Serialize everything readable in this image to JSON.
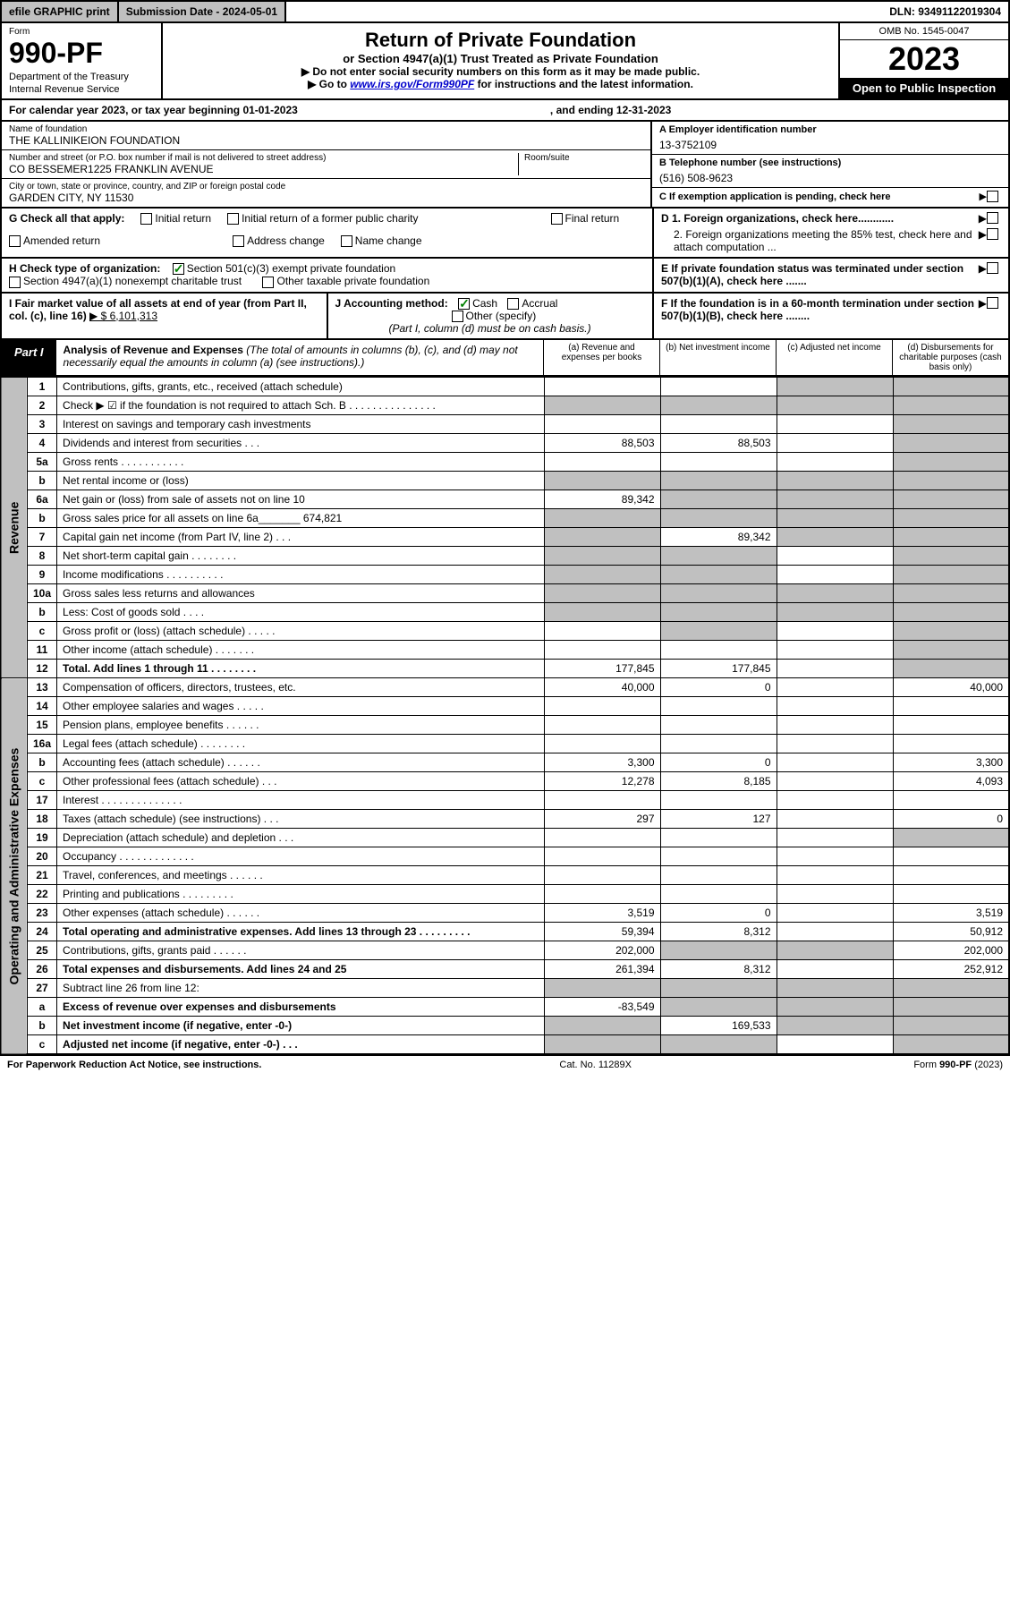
{
  "topBar": {
    "efile": "efile GRAPHIC print",
    "subDate": "Submission Date - 2024-05-01",
    "dln": "DLN: 93491122019304"
  },
  "header": {
    "formLabel": "Form",
    "formNum": "990-PF",
    "dept": "Department of the Treasury",
    "irs": "Internal Revenue Service",
    "title": "Return of Private Foundation",
    "subtitle": "or Section 4947(a)(1) Trust Treated as Private Foundation",
    "note1": "▶ Do not enter social security numbers on this form as it may be made public.",
    "note2prefix": "▶ Go to ",
    "note2link": "www.irs.gov/Form990PF",
    "note2suffix": " for instructions and the latest information.",
    "omb": "OMB No. 1545-0047",
    "year": "2023",
    "openPub": "Open to Public Inspection"
  },
  "calYear": {
    "left": "For calendar year 2023, or tax year beginning 01-01-2023",
    "right": ", and ending 12-31-2023"
  },
  "entity": {
    "nameLabel": "Name of foundation",
    "name": "THE KALLINIKEION FOUNDATION",
    "addrLabel": "Number and street (or P.O. box number if mail is not delivered to street address)",
    "addr": "CO BESSEMER1225 FRANKLIN AVENUE",
    "roomLabel": "Room/suite",
    "cityLabel": "City or town, state or province, country, and ZIP or foreign postal code",
    "city": "GARDEN CITY, NY  11530",
    "einLabel": "A Employer identification number",
    "ein": "13-3752109",
    "telLabel": "B Telephone number (see instructions)",
    "tel": "(516) 508-9623",
    "cLabel": "C If exemption application is pending, check here"
  },
  "sectionG": {
    "label": "G Check all that apply:",
    "opts": [
      "Initial return",
      "Initial return of a former public charity",
      "Final return",
      "Amended return",
      "Address change",
      "Name change"
    ]
  },
  "sectionD": {
    "d1": "D 1. Foreign organizations, check here............",
    "d2": "2. Foreign organizations meeting the 85% test, check here and attach computation ..."
  },
  "sectionH": {
    "label": "H Check type of organization:",
    "opt1": "Section 501(c)(3) exempt private foundation",
    "opt2": "Section 4947(a)(1) nonexempt charitable trust",
    "opt3": "Other taxable private foundation"
  },
  "sectionE": "E  If private foundation status was terminated under section 507(b)(1)(A), check here .......",
  "sectionI": {
    "label": "I Fair market value of all assets at end of year (from Part II, col. (c), line 16)",
    "val": "▶ $  6,101,313"
  },
  "sectionJ": {
    "label": "J Accounting method:",
    "cash": "Cash",
    "accrual": "Accrual",
    "other": "Other (specify)",
    "note": "(Part I, column (d) must be on cash basis.)"
  },
  "sectionF": "F  If the foundation is in a 60-month termination under section 507(b)(1)(B), check here ........",
  "part1": {
    "tab": "Part I",
    "title": "Analysis of Revenue and Expenses",
    "titleNote": " (The total of amounts in columns (b), (c), and (d) may not necessarily equal the amounts in column (a) (see instructions).)",
    "colA": "(a)   Revenue and expenses per books",
    "colB": "(b)   Net investment income",
    "colC": "(c)   Adjusted net income",
    "colD": "(d)   Disbursements for charitable purposes (cash basis only)"
  },
  "sideLabels": {
    "rev": "Revenue",
    "exp": "Operating and Administrative Expenses"
  },
  "rows": [
    {
      "n": "1",
      "d": "Contributions, gifts, grants, etc., received (attach schedule)",
      "a": "",
      "b": "",
      "c": "shade",
      "dd": "shade"
    },
    {
      "n": "2",
      "d": "Check ▶ ☑ if the foundation is not required to attach Sch. B   .   .   .   .   .   .   .   .   .   .   .   .   .   .   .",
      "a": "shade",
      "b": "shade",
      "c": "shade",
      "dd": "shade",
      "bold": false
    },
    {
      "n": "3",
      "d": "Interest on savings and temporary cash investments",
      "a": "",
      "b": "",
      "c": "",
      "dd": "shade"
    },
    {
      "n": "4",
      "d": "Dividends and interest from securities    .    .    .",
      "a": "88,503",
      "b": "88,503",
      "c": "",
      "dd": "shade"
    },
    {
      "n": "5a",
      "d": "Gross rents     .    .    .    .    .    .    .    .    .    .    .",
      "a": "",
      "b": "",
      "c": "",
      "dd": "shade"
    },
    {
      "n": "b",
      "d": "Net rental income or (loss)  ",
      "a": "shade",
      "b": "shade",
      "c": "shade",
      "dd": "shade"
    },
    {
      "n": "6a",
      "d": "Net gain or (loss) from sale of assets not on line 10",
      "a": "89,342",
      "b": "shade",
      "c": "shade",
      "dd": "shade"
    },
    {
      "n": "b",
      "d": "Gross sales price for all assets on line 6a_______ 674,821",
      "a": "shade",
      "b": "shade",
      "c": "shade",
      "dd": "shade"
    },
    {
      "n": "7",
      "d": "Capital gain net income (from Part IV, line 2)   .   .   .",
      "a": "shade",
      "b": "89,342",
      "c": "shade",
      "dd": "shade"
    },
    {
      "n": "8",
      "d": "Net short-term capital gain   .   .   .   .   .   .   .   .",
      "a": "shade",
      "b": "shade",
      "c": "",
      "dd": "shade"
    },
    {
      "n": "9",
      "d": "Income modifications  .   .   .   .   .   .   .   .   .   .",
      "a": "shade",
      "b": "shade",
      "c": "",
      "dd": "shade"
    },
    {
      "n": "10a",
      "d": "Gross sales less returns and allowances",
      "a": "shade",
      "b": "shade",
      "c": "shade",
      "dd": "shade"
    },
    {
      "n": "b",
      "d": "Less: Cost of goods sold     .    .    .    .",
      "a": "shade",
      "b": "shade",
      "c": "shade",
      "dd": "shade"
    },
    {
      "n": "c",
      "d": "Gross profit or (loss) (attach schedule)    .   .   .   .   .",
      "a": "",
      "b": "shade",
      "c": "",
      "dd": "shade"
    },
    {
      "n": "11",
      "d": "Other income (attach schedule)    .   .   .   .   .   .   .",
      "a": "",
      "b": "",
      "c": "",
      "dd": "shade"
    },
    {
      "n": "12",
      "d": "Total. Add lines 1 through 11   .   .   .   .   .   .   .   .",
      "a": "177,845",
      "b": "177,845",
      "c": "",
      "dd": "shade",
      "bold": true
    },
    {
      "n": "13",
      "d": "Compensation of officers, directors, trustees, etc.",
      "a": "40,000",
      "b": "0",
      "c": "",
      "dd": "40,000",
      "sect": "exp"
    },
    {
      "n": "14",
      "d": "Other employee salaries and wages    .   .   .   .   .",
      "a": "",
      "b": "",
      "c": "",
      "dd": ""
    },
    {
      "n": "15",
      "d": "Pension plans, employee benefits   .   .   .   .   .   .",
      "a": "",
      "b": "",
      "c": "",
      "dd": ""
    },
    {
      "n": "16a",
      "d": "Legal fees (attach schedule)  .   .   .   .   .   .   .   .",
      "a": "",
      "b": "",
      "c": "",
      "dd": ""
    },
    {
      "n": "b",
      "d": "Accounting fees (attach schedule)  .   .   .   .   .   .",
      "a": "3,300",
      "b": "0",
      "c": "",
      "dd": "3,300"
    },
    {
      "n": "c",
      "d": "Other professional fees (attach schedule)    .   .   .",
      "a": "12,278",
      "b": "8,185",
      "c": "",
      "dd": "4,093"
    },
    {
      "n": "17",
      "d": "Interest  .   .   .   .   .   .   .   .   .   .   .   .   .   .",
      "a": "",
      "b": "",
      "c": "",
      "dd": ""
    },
    {
      "n": "18",
      "d": "Taxes (attach schedule) (see instructions)     .   .   .",
      "a": "297",
      "b": "127",
      "c": "",
      "dd": "0"
    },
    {
      "n": "19",
      "d": "Depreciation (attach schedule) and depletion    .   .   .",
      "a": "",
      "b": "",
      "c": "",
      "dd": "shade"
    },
    {
      "n": "20",
      "d": "Occupancy  .   .   .   .   .   .   .   .   .   .   .   .   .",
      "a": "",
      "b": "",
      "c": "",
      "dd": ""
    },
    {
      "n": "21",
      "d": "Travel, conferences, and meetings  .   .   .   .   .   .",
      "a": "",
      "b": "",
      "c": "",
      "dd": ""
    },
    {
      "n": "22",
      "d": "Printing and publications  .   .   .   .   .   .   .   .   .",
      "a": "",
      "b": "",
      "c": "",
      "dd": ""
    },
    {
      "n": "23",
      "d": "Other expenses (attach schedule)  .   .   .   .   .   .",
      "a": "3,519",
      "b": "0",
      "c": "",
      "dd": "3,519"
    },
    {
      "n": "24",
      "d": "Total operating and administrative expenses. Add lines 13 through 23   .   .   .   .   .   .   .   .   .",
      "a": "59,394",
      "b": "8,312",
      "c": "",
      "dd": "50,912",
      "bold": true
    },
    {
      "n": "25",
      "d": "Contributions, gifts, grants paid     .   .   .   .   .   .",
      "a": "202,000",
      "b": "shade",
      "c": "shade",
      "dd": "202,000"
    },
    {
      "n": "26",
      "d": "Total expenses and disbursements. Add lines 24 and 25",
      "a": "261,394",
      "b": "8,312",
      "c": "",
      "dd": "252,912",
      "bold": true
    },
    {
      "n": "27",
      "d": "Subtract line 26 from line 12:",
      "a": "shade",
      "b": "shade",
      "c": "shade",
      "dd": "shade"
    },
    {
      "n": "a",
      "d": "Excess of revenue over expenses and disbursements",
      "a": "-83,549",
      "b": "shade",
      "c": "shade",
      "dd": "shade",
      "bold": true
    },
    {
      "n": "b",
      "d": "Net investment income (if negative, enter -0-)",
      "a": "shade",
      "b": "169,533",
      "c": "shade",
      "dd": "shade",
      "bold": true
    },
    {
      "n": "c",
      "d": "Adjusted net income (if negative, enter -0-)   .   .   .",
      "a": "shade",
      "b": "shade",
      "c": "",
      "dd": "shade",
      "bold": true
    }
  ],
  "footer": {
    "l": "For Paperwork Reduction Act Notice, see instructions.",
    "c": "Cat. No. 11289X",
    "r": "Form 990-PF (2023)"
  }
}
